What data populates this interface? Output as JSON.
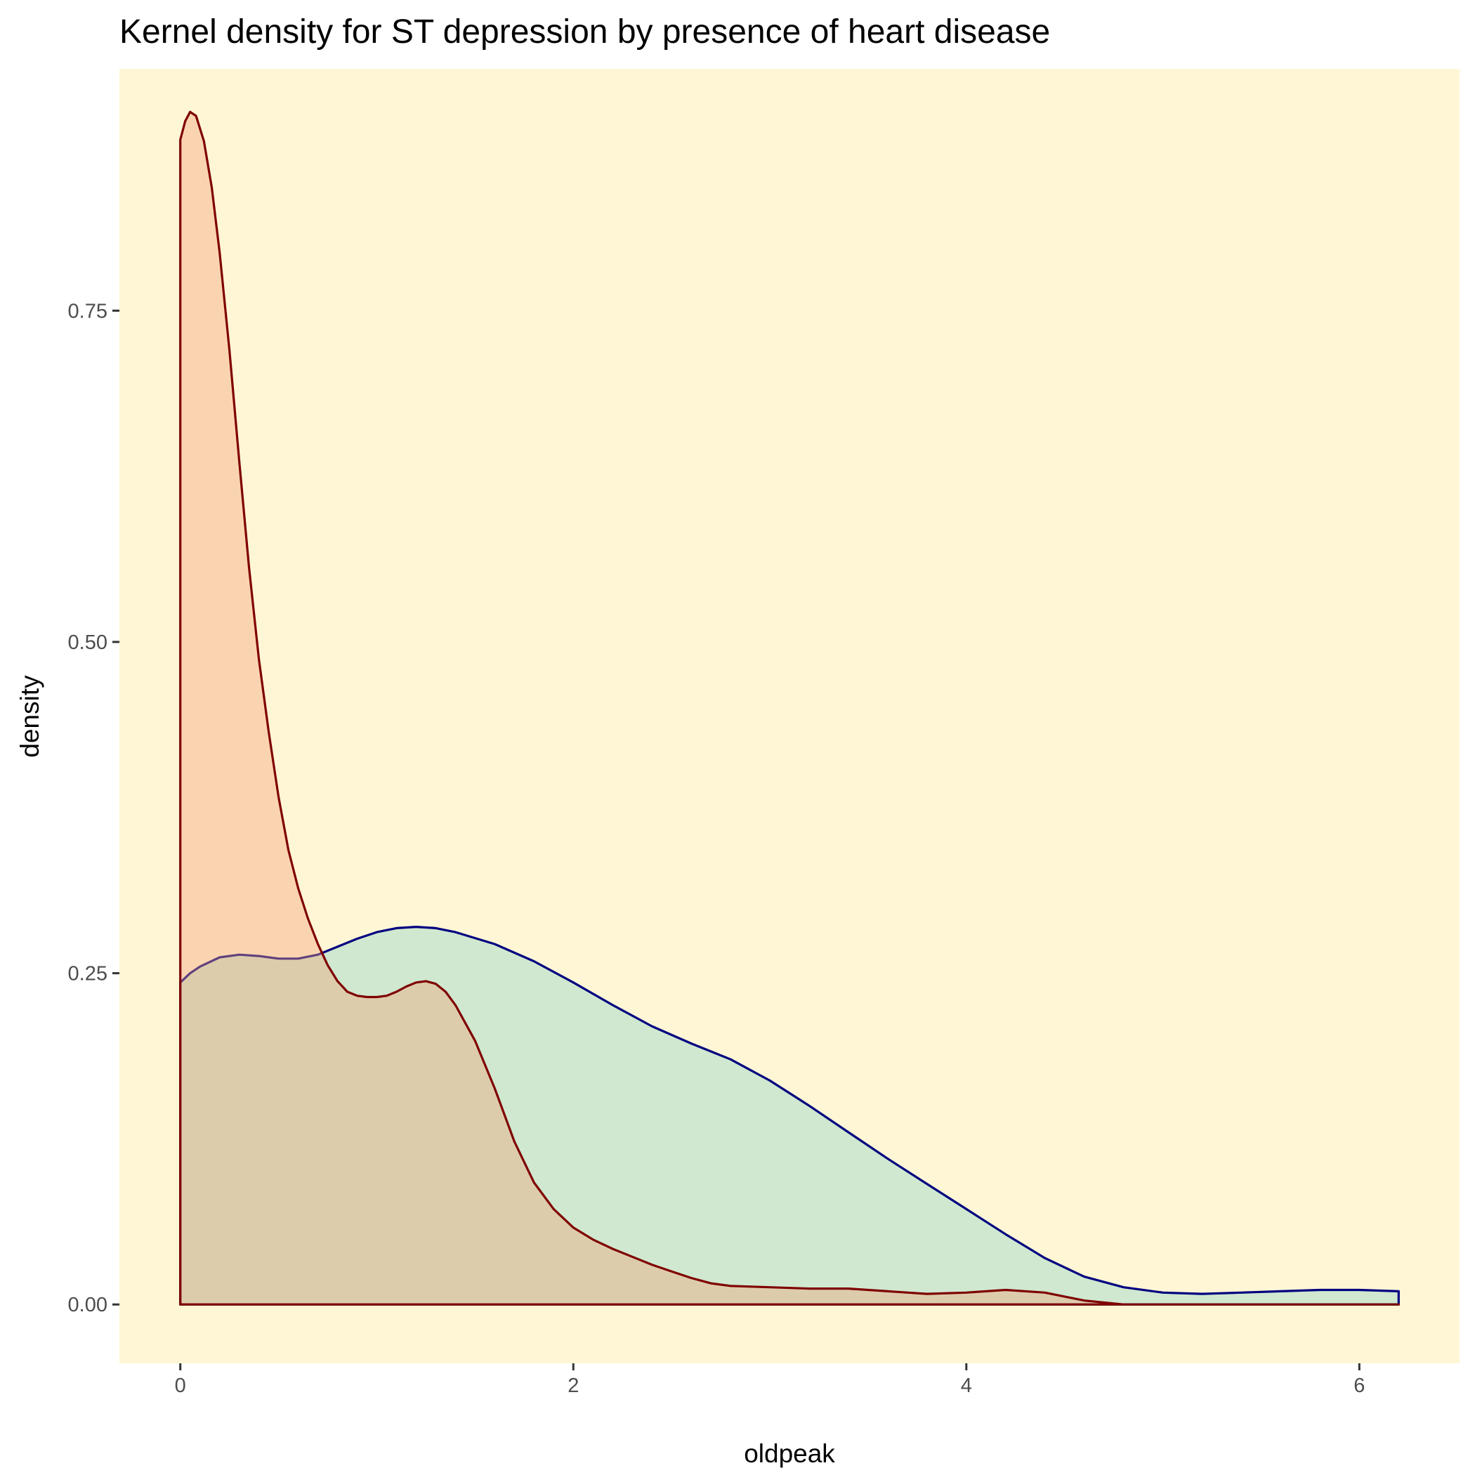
{
  "chart_data": {
    "type": "area",
    "title": "Kernel density for ST depression by presence of heart disease",
    "xlabel": "oldpeak",
    "ylabel": "density",
    "xlim": [
      -0.31,
      6.51
    ],
    "ylim": [
      -0.0444,
      0.9325
    ],
    "x_ticks": [
      0,
      2,
      4,
      6
    ],
    "x_tick_labels": [
      "0",
      "2",
      "4",
      "6"
    ],
    "y_ticks": [
      0,
      0.25,
      0.5,
      0.75
    ],
    "y_tick_labels": [
      "0.00",
      "0.25",
      "0.50",
      "0.75"
    ],
    "grid": false,
    "legend": "none",
    "colors": {
      "panel_background": "#FFF6D5",
      "plot_background": "#FFFFFF"
    },
    "series": [
      {
        "fill": "#CFE8CF",
        "stroke": "#000080",
        "x": [
          0,
          0.05,
          0.1,
          0.2,
          0.3,
          0.4,
          0.5,
          0.6,
          0.7,
          0.8,
          0.9,
          1.0,
          1.1,
          1.2,
          1.3,
          1.4,
          1.6,
          1.8,
          2.0,
          2.2,
          2.4,
          2.6,
          2.8,
          3.0,
          3.2,
          3.4,
          3.6,
          3.8,
          4.0,
          4.2,
          4.4,
          4.6,
          4.8,
          5.0,
          5.2,
          5.4,
          5.6,
          5.8,
          6.0,
          6.2
        ],
        "y": [
          0.243,
          0.25,
          0.255,
          0.262,
          0.264,
          0.263,
          0.261,
          0.261,
          0.264,
          0.27,
          0.276,
          0.281,
          0.284,
          0.285,
          0.284,
          0.281,
          0.272,
          0.259,
          0.243,
          0.226,
          0.21,
          0.197,
          0.185,
          0.169,
          0.15,
          0.13,
          0.11,
          0.091,
          0.072,
          0.053,
          0.035,
          0.021,
          0.013,
          0.009,
          0.008,
          0.009,
          0.01,
          0.011,
          0.011,
          0.01
        ]
      },
      {
        "fill": "#F2A277",
        "fill_opacity": 0.4,
        "stroke": "#7F0000",
        "x": [
          0,
          0.025,
          0.05,
          0.08,
          0.12,
          0.16,
          0.2,
          0.25,
          0.3,
          0.35,
          0.4,
          0.45,
          0.5,
          0.55,
          0.6,
          0.65,
          0.7,
          0.75,
          0.8,
          0.85,
          0.9,
          0.95,
          1.0,
          1.05,
          1.1,
          1.15,
          1.2,
          1.25,
          1.3,
          1.35,
          1.4,
          1.5,
          1.6,
          1.7,
          1.8,
          1.9,
          2.0,
          2.1,
          2.2,
          2.3,
          2.4,
          2.5,
          2.6,
          2.7,
          2.8,
          3.0,
          3.2,
          3.4,
          3.6,
          3.8,
          4.0,
          4.2,
          4.4,
          4.6,
          4.8,
          5.0,
          6.2
        ],
        "y": [
          0.879,
          0.893,
          0.9,
          0.897,
          0.878,
          0.843,
          0.794,
          0.72,
          0.636,
          0.556,
          0.487,
          0.432,
          0.383,
          0.343,
          0.314,
          0.291,
          0.272,
          0.256,
          0.244,
          0.236,
          0.233,
          0.232,
          0.232,
          0.233,
          0.236,
          0.24,
          0.243,
          0.244,
          0.242,
          0.236,
          0.226,
          0.199,
          0.163,
          0.123,
          0.092,
          0.072,
          0.058,
          0.049,
          0.042,
          0.036,
          0.03,
          0.025,
          0.02,
          0.016,
          0.014,
          0.013,
          0.012,
          0.012,
          0.01,
          0.008,
          0.009,
          0.011,
          0.009,
          0.003,
          0.0,
          0.0,
          0.0
        ]
      }
    ]
  }
}
